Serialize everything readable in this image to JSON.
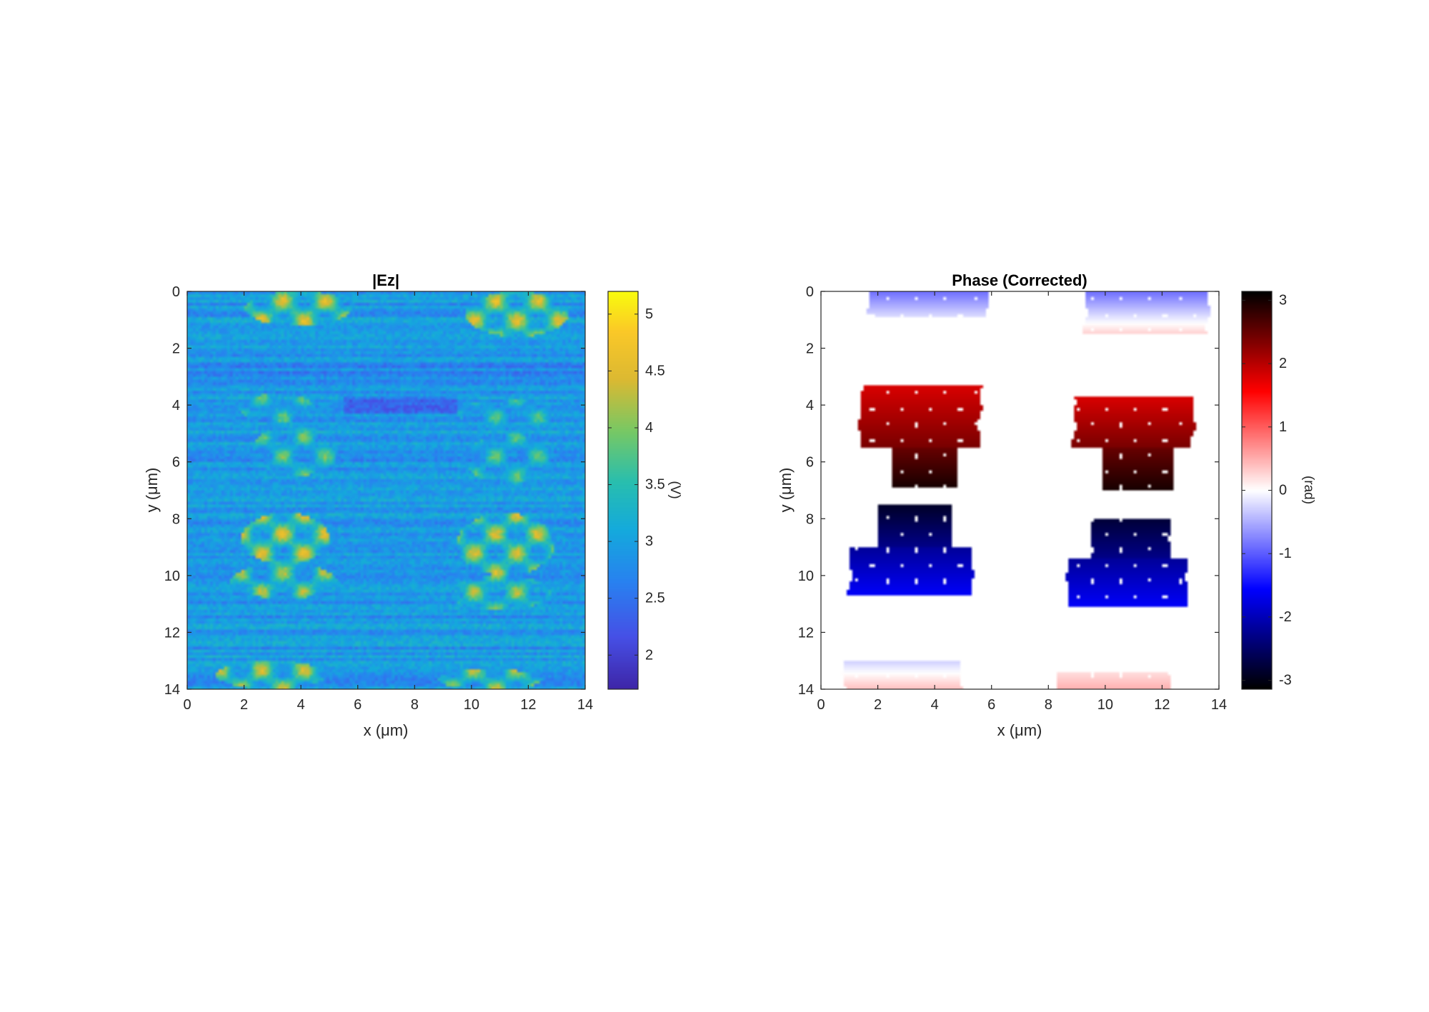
{
  "chart_data": [
    {
      "type": "heatmap",
      "title": "|Ez|",
      "xlabel": "x (μm)",
      "ylabel": "y (μm)",
      "xlim": [
        0,
        14
      ],
      "ylim": [
        0,
        14
      ],
      "y_direction": "reversed",
      "x_ticks": [
        "0",
        "2",
        "4",
        "6",
        "8",
        "10",
        "12",
        "14"
      ],
      "y_ticks": [
        "0",
        "2",
        "4",
        "6",
        "8",
        "10",
        "12",
        "14"
      ],
      "colormap": "parula",
      "colorbar": {
        "label": "(V)",
        "range": [
          1.7,
          5.2
        ],
        "ticks": [
          2,
          2.5,
          3,
          3.5,
          4,
          4.5,
          5
        ],
        "tick_labels": [
          "2",
          "2.5",
          "3",
          "3.5",
          "4",
          "4.5",
          "5"
        ]
      },
      "background_level": 2.9,
      "features": [
        {
          "x": [
            2.0,
            5.8
          ],
          "y": [
            0.0,
            1.2
          ],
          "level": 4.6
        },
        {
          "x": [
            9.8,
            13.4
          ],
          "y": [
            0.0,
            1.6
          ],
          "level": 4.6
        },
        {
          "x": [
            1.8,
            4.5
          ],
          "y": [
            3.6,
            4.6
          ],
          "level": 3.9
        },
        {
          "x": [
            2.3,
            5.3
          ],
          "y": [
            4.7,
            6.5
          ],
          "level": 4.0
        },
        {
          "x": [
            9.5,
            13.0
          ],
          "y": [
            3.8,
            4.8
          ],
          "level": 3.8
        },
        {
          "x": [
            9.8,
            12.8
          ],
          "y": [
            5.0,
            6.8
          ],
          "level": 3.9
        },
        {
          "x": [
            1.9,
            5.0
          ],
          "y": [
            7.8,
            9.6
          ],
          "level": 4.6
        },
        {
          "x": [
            1.5,
            5.3
          ],
          "y": [
            9.6,
            10.8
          ],
          "level": 4.3
        },
        {
          "x": [
            9.5,
            12.9
          ],
          "y": [
            7.8,
            10.0
          ],
          "level": 4.5
        },
        {
          "x": [
            9.2,
            12.8
          ],
          "y": [
            10.0,
            11.2
          ],
          "level": 4.3
        },
        {
          "x": [
            1.0,
            4.9
          ],
          "y": [
            13.0,
            14.0
          ],
          "level": 4.5
        },
        {
          "x": [
            8.8,
            12.5
          ],
          "y": [
            13.3,
            14.0
          ],
          "level": 4.4
        }
      ]
    },
    {
      "type": "heatmap",
      "title": "Phase (Corrected)",
      "xlabel": "x (μm)",
      "ylabel": "y (μm)",
      "xlim": [
        0,
        14
      ],
      "ylim": [
        0,
        14
      ],
      "y_direction": "reversed",
      "x_ticks": [
        "0",
        "2",
        "4",
        "6",
        "8",
        "10",
        "12",
        "14"
      ],
      "y_ticks": [
        "0",
        "2",
        "4",
        "6",
        "8",
        "10",
        "12",
        "14"
      ],
      "colormap": "black-blue-white-red-black",
      "colorbar": {
        "label": "(rad)",
        "range": [
          -3.14,
          3.14
        ],
        "ticks": [
          -3,
          -2,
          -1,
          0,
          1,
          2,
          3
        ],
        "tick_labels": [
          "-3",
          "-2",
          "-1",
          "0",
          "1",
          "2",
          "3"
        ]
      },
      "regions": [
        {
          "x": [
            1.7,
            5.9
          ],
          "y": [
            0.0,
            0.9
          ],
          "phase_top": -0.9,
          "phase_bottom": -0.2
        },
        {
          "x": [
            9.3,
            13.6
          ],
          "y": [
            0.0,
            1.5
          ],
          "phase_top": -0.9,
          "phase_bottom": 0.3
        },
        {
          "x": [
            1.4,
            5.6
          ],
          "y": [
            3.3,
            5.5
          ],
          "phase_top": 1.8,
          "phase_bottom": 2.4
        },
        {
          "x": [
            2.5,
            4.8
          ],
          "y": [
            5.5,
            6.9
          ],
          "phase_top": 2.5,
          "phase_bottom": 3.0
        },
        {
          "x": [
            8.9,
            13.1
          ],
          "y": [
            3.7,
            5.5
          ],
          "phase_top": 1.8,
          "phase_bottom": 2.4
        },
        {
          "x": [
            9.9,
            12.4
          ],
          "y": [
            5.5,
            7.0
          ],
          "phase_top": 2.5,
          "phase_bottom": 3.0
        },
        {
          "x": [
            2.0,
            4.6
          ],
          "y": [
            7.5,
            9.0
          ],
          "phase_top": -2.9,
          "phase_bottom": -2.3
        },
        {
          "x": [
            1.0,
            5.3
          ],
          "y": [
            9.0,
            10.7
          ],
          "phase_top": -2.2,
          "phase_bottom": -1.6
        },
        {
          "x": [
            9.5,
            12.3
          ],
          "y": [
            8.0,
            9.4
          ],
          "phase_top": -2.8,
          "phase_bottom": -2.3
        },
        {
          "x": [
            8.7,
            12.9
          ],
          "y": [
            9.4,
            11.1
          ],
          "phase_top": -2.2,
          "phase_bottom": -1.6
        },
        {
          "x": [
            0.8,
            4.9
          ],
          "y": [
            13.0,
            14.0
          ],
          "phase_top": -0.3,
          "phase_bottom": 0.4
        },
        {
          "x": [
            8.3,
            12.3
          ],
          "y": [
            13.4,
            14.0
          ],
          "phase_top": 0.2,
          "phase_bottom": 0.5
        }
      ]
    }
  ]
}
